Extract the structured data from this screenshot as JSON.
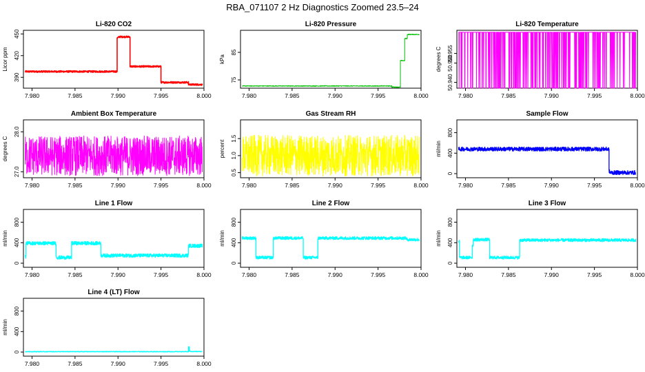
{
  "page_title": "RBA_071107  2 Hz Diagnostics Zoomed 23.5–24",
  "chart_data": [
    {
      "type": "line",
      "title": "Li-820 CO2",
      "ylabel": "Licor ppm",
      "color": "#ff0000",
      "xlim": [
        7.979,
        8.0
      ],
      "ylim": [
        375,
        455
      ],
      "xticks": [
        7.98,
        7.985,
        7.99,
        7.995,
        8.0
      ],
      "xtick_labels": [
        "7.980",
        "7.985",
        "7.990",
        "7.995",
        "8.000"
      ],
      "yticks": [
        390,
        420,
        450
      ],
      "ytick_labels": [
        "390",
        "420",
        "450"
      ],
      "segments": [
        [
          7.9792,
          7.9899,
          398
        ],
        [
          7.9899,
          7.9901,
          445
        ],
        [
          7.9901,
          7.9914,
          446
        ],
        [
          7.9914,
          7.9915,
          405
        ],
        [
          7.9915,
          7.995,
          405
        ],
        [
          7.995,
          7.9951,
          383
        ],
        [
          7.9951,
          7.9982,
          383
        ],
        [
          7.9982,
          7.9983,
          380
        ],
        [
          7.9983,
          7.9998,
          380
        ]
      ],
      "noise": 1.2,
      "stroke_width": 1.6
    },
    {
      "type": "line",
      "title": "Li-820 Pressure",
      "ylabel": "kPa",
      "color": "#00c000",
      "xlim": [
        7.979,
        8.0
      ],
      "ylim": [
        72,
        93
      ],
      "xticks": [
        7.98,
        7.985,
        7.99,
        7.995,
        8.0
      ],
      "xtick_labels": [
        "7.980",
        "7.985",
        "7.990",
        "7.995",
        "8.000"
      ],
      "yticks": [
        75,
        85
      ],
      "ytick_labels": [
        "75",
        "85"
      ],
      "segments": [
        [
          7.9792,
          7.9966,
          72.8
        ],
        [
          7.9966,
          7.9976,
          72.4
        ],
        [
          7.9976,
          7.9981,
          82
        ],
        [
          7.9981,
          7.9984,
          90
        ],
        [
          7.9984,
          7.9998,
          91.5
        ]
      ],
      "noise": 0.15,
      "stroke_width": 1
    },
    {
      "type": "line",
      "title": "Li-820 Temperature",
      "ylabel": "degrees C",
      "color": "#ff00ff",
      "xlim": [
        7.979,
        8.0
      ],
      "ylim": [
        50.937,
        50.967
      ],
      "xticks": [
        7.98,
        7.985,
        7.99,
        7.995,
        8.0
      ],
      "xtick_labels": [
        "7.980",
        "7.985",
        "7.990",
        "7.995",
        "8.000"
      ],
      "yticks": [
        50.94,
        50.95,
        50.955
      ],
      "ytick_labels": [
        "50.940",
        "50.950",
        "50.955"
      ],
      "baseline": 50.966,
      "drop_to": 50.937,
      "stroke_width": 1
    },
    {
      "type": "line",
      "title": "Ambient Box Temperature",
      "ylabel": "degrees C",
      "color": "#ff00ff",
      "xlim": [
        7.979,
        8.0
      ],
      "ylim": [
        26.85,
        28.3
      ],
      "xticks": [
        7.98,
        7.985,
        7.99,
        7.995,
        8.0
      ],
      "xtick_labels": [
        "7.980",
        "7.985",
        "7.990",
        "7.995",
        "8.000"
      ],
      "yticks": [
        27.0,
        28.0
      ],
      "ytick_labels": [
        "27.0",
        "28.0"
      ],
      "segments": [
        [
          7.9792,
          7.9998,
          27.4
        ]
      ],
      "noise": 0.5,
      "stroke_width": 1
    },
    {
      "type": "line",
      "title": "Gas Stream RH",
      "ylabel": "percent",
      "color": "#ffff00",
      "xlim": [
        7.979,
        8.0
      ],
      "ylim": [
        0.35,
        2.05
      ],
      "xticks": [
        7.98,
        7.985,
        7.99,
        7.995,
        8.0
      ],
      "xtick_labels": [
        "7.980",
        "7.985",
        "7.990",
        "7.995",
        "8.000"
      ],
      "yticks": [
        0.5,
        1.0,
        1.5
      ],
      "ytick_labels": [
        "0.5",
        "1.0",
        "1.5"
      ],
      "segments": [
        [
          7.9792,
          7.9998,
          1.0
        ]
      ],
      "noise": 0.6,
      "stroke_width": 1
    },
    {
      "type": "line",
      "title": "Sample Flow",
      "ylabel": "ml/min",
      "color": "#0000ff",
      "xlim": [
        7.979,
        8.0
      ],
      "ylim": [
        -80,
        1050
      ],
      "xticks": [
        7.98,
        7.985,
        7.99,
        7.995,
        8.0
      ],
      "xtick_labels": [
        "7.980",
        "7.985",
        "7.990",
        "7.995",
        "8.000"
      ],
      "yticks": [
        0,
        400,
        800
      ],
      "ytick_labels": [
        "0",
        "400",
        "800"
      ],
      "segments": [
        [
          7.9792,
          7.9967,
          480
        ],
        [
          7.9967,
          7.9968,
          40
        ],
        [
          7.9968,
          7.9998,
          20
        ]
      ],
      "noise": 40,
      "stroke_width": 1.3
    },
    {
      "type": "line",
      "title": "Line 1 Flow",
      "ylabel": "ml/min",
      "color": "#00ffff",
      "xlim": [
        7.979,
        8.0
      ],
      "ylim": [
        -80,
        1050
      ],
      "xticks": [
        7.98,
        7.985,
        7.99,
        7.995,
        8.0
      ],
      "xtick_labels": [
        "7.980",
        "7.985",
        "7.990",
        "7.995",
        "8.000"
      ],
      "yticks": [
        0,
        400,
        800
      ],
      "ytick_labels": [
        "0",
        "400",
        "800"
      ],
      "segments": [
        [
          7.9792,
          7.9793,
          130
        ],
        [
          7.9793,
          7.9828,
          390
        ],
        [
          7.9828,
          7.9829,
          120
        ],
        [
          7.9829,
          7.9846,
          110
        ],
        [
          7.9846,
          7.9847,
          390
        ],
        [
          7.9847,
          7.988,
          390
        ],
        [
          7.988,
          7.9881,
          150
        ],
        [
          7.9881,
          7.9982,
          150
        ],
        [
          7.9982,
          7.9998,
          340
        ]
      ],
      "noise": 35,
      "stroke_width": 1.3
    },
    {
      "type": "line",
      "title": "Line 2 Flow",
      "ylabel": "ml/min",
      "color": "#00ffff",
      "xlim": [
        7.979,
        8.0
      ],
      "ylim": [
        -80,
        1050
      ],
      "xticks": [
        7.98,
        7.985,
        7.99,
        7.995,
        8.0
      ],
      "xtick_labels": [
        "7.980",
        "7.985",
        "7.990",
        "7.995",
        "8.000"
      ],
      "yticks": [
        0,
        400,
        800
      ],
      "ytick_labels": [
        "0",
        "400",
        "800"
      ],
      "segments": [
        [
          7.9792,
          7.9808,
          490
        ],
        [
          7.9808,
          7.9809,
          110
        ],
        [
          7.9809,
          7.9828,
          110
        ],
        [
          7.9828,
          7.9829,
          480
        ],
        [
          7.9829,
          7.9863,
          490
        ],
        [
          7.9863,
          7.9864,
          110
        ],
        [
          7.9864,
          7.988,
          110
        ],
        [
          7.988,
          7.9881,
          490
        ],
        [
          7.9881,
          7.9983,
          490
        ],
        [
          7.9983,
          7.9998,
          460
        ]
      ],
      "noise": 30,
      "stroke_width": 1.3
    },
    {
      "type": "line",
      "title": "Line 3 Flow",
      "ylabel": "ml/min",
      "color": "#00ffff",
      "xlim": [
        7.979,
        8.0
      ],
      "ylim": [
        -80,
        1050
      ],
      "xticks": [
        7.98,
        7.985,
        7.99,
        7.995,
        8.0
      ],
      "xtick_labels": [
        "7.980",
        "7.985",
        "7.990",
        "7.995",
        "8.000"
      ],
      "yticks": [
        0,
        400,
        800
      ],
      "ytick_labels": [
        "0",
        "400",
        "800"
      ],
      "segments": [
        [
          7.9792,
          7.9793,
          420
        ],
        [
          7.9793,
          7.9808,
          110
        ],
        [
          7.9808,
          7.9809,
          350
        ],
        [
          7.9809,
          7.9828,
          460
        ],
        [
          7.9828,
          7.9829,
          110
        ],
        [
          7.9829,
          7.9863,
          110
        ],
        [
          7.9863,
          7.9864,
          440
        ],
        [
          7.9864,
          7.9998,
          450
        ]
      ],
      "noise": 30,
      "stroke_width": 1.3
    },
    {
      "type": "line",
      "title": "Line 4 (LT) Flow",
      "ylabel": "ml/min",
      "color": "#00ffff",
      "xlim": [
        7.979,
        8.0
      ],
      "ylim": [
        -80,
        1050
      ],
      "xticks": [
        7.98,
        7.985,
        7.99,
        7.995,
        8.0
      ],
      "xtick_labels": [
        "7.980",
        "7.985",
        "7.990",
        "7.995",
        "8.000"
      ],
      "yticks": [
        0,
        400,
        800
      ],
      "ytick_labels": [
        "0",
        "400",
        "800"
      ],
      "segments": [
        [
          7.9792,
          7.9982,
          8
        ],
        [
          7.9982,
          7.9983,
          100
        ],
        [
          7.9983,
          7.9984,
          20
        ],
        [
          7.9984,
          7.9998,
          10
        ]
      ],
      "noise": 6,
      "stroke_width": 1.3
    }
  ]
}
